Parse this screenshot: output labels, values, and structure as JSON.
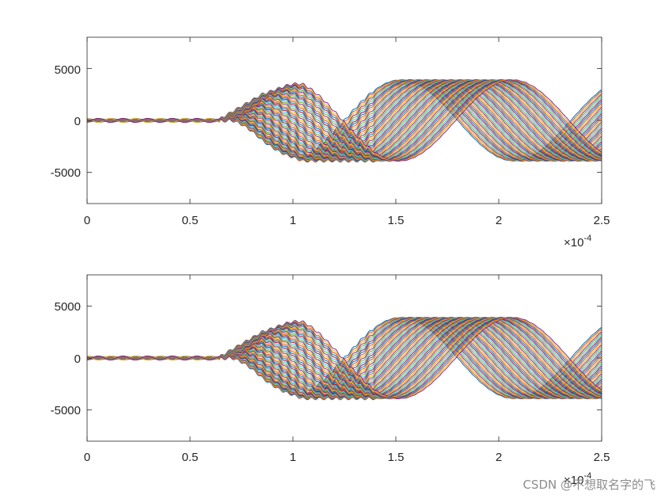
{
  "chart_data": [
    {
      "type": "line",
      "panel": "top",
      "title": "",
      "xlabel": "",
      "ylabel": "",
      "xlim": [
        0,
        2.5
      ],
      "ylim": [
        -8000,
        8000
      ],
      "x_exponent_base": "×10",
      "x_exponent": "-4",
      "xticks": [
        0,
        0.5,
        1,
        1.5,
        2,
        2.5
      ],
      "xtick_labels": [
        "0",
        "0.5",
        "1",
        "1.5",
        "2",
        "2.5"
      ],
      "yticks": [
        -5000,
        0,
        5000
      ],
      "ytick_labels": [
        "-5000",
        "0",
        "5000"
      ],
      "grid": false,
      "legend": "none",
      "series_count": 60,
      "description_of_curves": "family of oscillating traces; near-zero ripple of about ±200 up to x≈0.65, rise to about ±2500 near x≈0.85, then sinusoidal swings between about -3900 and 3900 with phase offsets across the series",
      "amplitude_envelope": {
        "x": [
          0,
          0.65,
          0.85,
          1.05,
          1.3,
          2.5
        ],
        "y": [
          200,
          200,
          2500,
          3900,
          3900,
          3900
        ]
      }
    },
    {
      "type": "line",
      "panel": "bottom",
      "title": "",
      "xlabel": "",
      "ylabel": "",
      "xlim": [
        0,
        2.5
      ],
      "ylim": [
        -8000,
        8000
      ],
      "x_exponent_base": "×10",
      "x_exponent": "-4",
      "xticks": [
        0,
        0.5,
        1,
        1.5,
        2,
        2.5
      ],
      "xtick_labels": [
        "0",
        "0.5",
        "1",
        "1.5",
        "2",
        "2.5"
      ],
      "yticks": [
        -5000,
        0,
        5000
      ],
      "ytick_labels": [
        "-5000",
        "0",
        "5000"
      ],
      "grid": false,
      "legend": "none",
      "series_count": 60,
      "amplitude_envelope": {
        "x": [
          0,
          0.65,
          0.85,
          1.05,
          1.3,
          2.5
        ],
        "y": [
          200,
          200,
          2500,
          3900,
          3900,
          3900
        ]
      }
    }
  ],
  "colors": [
    "#0072bd",
    "#d95319",
    "#edb120",
    "#7e2f8e",
    "#77ac30",
    "#4dbeee",
    "#a2142f"
  ],
  "watermark": "CSDN @不想取名字的飞"
}
